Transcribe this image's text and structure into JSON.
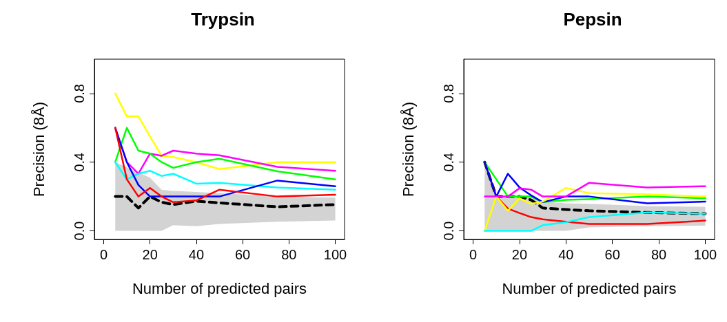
{
  "chart_data": [
    {
      "type": "line",
      "title": "Trypsin",
      "xlabel": "Number of predicted pairs",
      "ylabel": "Precision (8Å)",
      "x": [
        5,
        10,
        15,
        20,
        25,
        30,
        40,
        50,
        75,
        100
      ],
      "xlim": [
        -4,
        104
      ],
      "xticks": [
        0,
        20,
        40,
        60,
        80,
        100
      ],
      "ylim": [
        -0.05,
        1.0
      ],
      "yticks": [
        {
          "value": 0,
          "label": "0.0"
        },
        {
          "value": 0.4,
          "label": "0.4"
        },
        {
          "value": 0.8,
          "label": "0.8"
        }
      ],
      "grid": false,
      "marker": "none",
      "line_style": "solid",
      "series": [
        {
          "color": "#000000",
          "line_style": "dashed",
          "values": [
            0.2,
            0.2,
            0.133,
            0.2,
            0.167,
            0.153,
            0.173,
            0.163,
            0.14,
            0.153
          ],
          "lower": [
            0,
            0,
            0,
            0,
            0,
            0.033,
            0.027,
            0.04,
            0.053,
            0.06
          ],
          "upper": [
            0.4,
            0.37,
            0.34,
            0.31,
            0.24,
            0.233,
            0.227,
            0.22,
            0.2,
            0.193
          ]
        },
        {
          "color": "#ffff00",
          "values": [
            0.8,
            0.667,
            0.667,
            0.55,
            0.437,
            0.43,
            0.4,
            0.36,
            0.4,
            0.4
          ]
        },
        {
          "color": "#ff00ff",
          "values": [
            0.6,
            0.4,
            0.333,
            0.45,
            0.437,
            0.467,
            0.45,
            0.44,
            0.373,
            0.35
          ]
        },
        {
          "color": "#00ff00",
          "values": [
            0.4,
            0.6,
            0.467,
            0.45,
            0.4,
            0.367,
            0.4,
            0.42,
            0.347,
            0.3
          ]
        },
        {
          "color": "#00ffff",
          "values": [
            0.4,
            0.3,
            0.333,
            0.35,
            0.32,
            0.333,
            0.275,
            0.28,
            0.253,
            0.24
          ]
        },
        {
          "color": "#0000ff",
          "values": [
            0.6,
            0.4,
            0.267,
            0.2,
            0.2,
            0.2,
            0.2,
            0.2,
            0.293,
            0.26
          ]
        },
        {
          "color": "#ff0000",
          "values": [
            0.6,
            0.3,
            0.2,
            0.25,
            0.2,
            0.167,
            0.177,
            0.24,
            0.2,
            0.21
          ]
        }
      ]
    },
    {
      "type": "line",
      "title": "Pepsin",
      "xlabel": "Number of predicted pairs",
      "ylabel": "Precision (8Å)",
      "x": [
        5,
        10,
        15,
        20,
        25,
        30,
        40,
        50,
        75,
        100
      ],
      "xlim": [
        -4,
        104
      ],
      "xticks": [
        0,
        20,
        40,
        60,
        80,
        100
      ],
      "ylim": [
        -0.05,
        1.0
      ],
      "yticks": [
        {
          "value": 0,
          "label": "0.0"
        },
        {
          "value": 0.4,
          "label": "0.4"
        },
        {
          "value": 0.8,
          "label": "0.8"
        }
      ],
      "grid": false,
      "marker": "none",
      "line_style": "solid",
      "series": [
        {
          "color": "#000000",
          "line_style": "dashed",
          "values": [
            0.4,
            0.2,
            0.2,
            0.2,
            0.18,
            0.133,
            0.124,
            0.117,
            0.107,
            0.1
          ],
          "lower": [
            0,
            0,
            0,
            0,
            0,
            0,
            0,
            0.02,
            0.027,
            0.03
          ],
          "upper": [
            0.4,
            0.2,
            0.2,
            0.2,
            0.2,
            0.17,
            0.16,
            0.157,
            0.144,
            0.14
          ]
        },
        {
          "color": "#00ff00",
          "values": [
            0.4,
            0.3,
            0.2,
            0.2,
            0.2,
            0.167,
            0.18,
            0.184,
            0.2,
            0.19
          ]
        },
        {
          "color": "#ff0000",
          "values": [
            0.4,
            0.2,
            0.13,
            0.104,
            0.08,
            0.067,
            0.053,
            0.04,
            0.04,
            0.06
          ]
        },
        {
          "color": "#0000ff",
          "values": [
            0.4,
            0.2,
            0.333,
            0.253,
            0.207,
            0.167,
            0.2,
            0.2,
            0.16,
            0.17
          ]
        },
        {
          "color": "#ffff00",
          "values": [
            0,
            0.2,
            0.117,
            0.19,
            0.157,
            0.17,
            0.25,
            0.22,
            0.213,
            0.2
          ]
        },
        {
          "color": "#ff00ff",
          "values": [
            0.2,
            0.2,
            0.2,
            0.248,
            0.24,
            0.2,
            0.2,
            0.28,
            0.253,
            0.26
          ]
        },
        {
          "color": "#00ffff",
          "values": [
            0,
            0,
            0,
            0,
            0,
            0.033,
            0.05,
            0.08,
            0.107,
            0.1
          ]
        }
      ]
    }
  ]
}
